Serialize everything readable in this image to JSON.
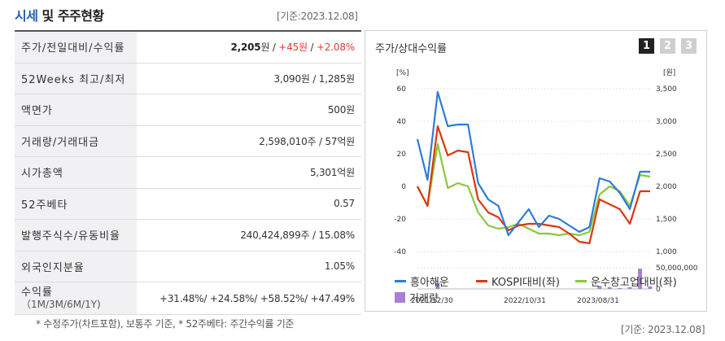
{
  "header": {
    "title_accent": "시세",
    "title_rest": " 및 주주현황",
    "date": "[기준:2023.12.08]"
  },
  "rows": [
    {
      "label": "주가/전일대비/수익률",
      "value_bold": "2,205",
      "value_unit": "원",
      "sep1": " / ",
      "change": "+45원",
      "sep2": " / ",
      "pct": "+2.08%"
    },
    {
      "label": "52Weeks 최고/최저",
      "value": "3,090원 / 1,285원"
    },
    {
      "label": "액면가",
      "value": "500원"
    },
    {
      "label": "거래량/거래대금",
      "value": "2,598,010주 / 57억원"
    },
    {
      "label": "시가총액",
      "value": "5,301억원"
    },
    {
      "label": "52주베타",
      "value": "0.57"
    },
    {
      "label": "발행주식수/유동비율",
      "value": "240,424,899주 / 15.08%"
    },
    {
      "label": "외국인지분율",
      "value": "1.05%"
    },
    {
      "label": "수익률",
      "label_sub": "（1M/3M/6M/1Y)",
      "value": "+31.48%/ +24.58%/ +58.52%/ +47.49%"
    }
  ],
  "footnote": "* 수정주가(차트포함), 보통주 기준, * 52주베타: 주간수익률 기준",
  "chart_panel": {
    "title": "주가/상대수익률",
    "tabs": [
      "1",
      "2",
      "3"
    ],
    "active_tab": "1",
    "date": "[기준: 2023.12.08]"
  },
  "chart_data": {
    "type": "line",
    "left_axis_unit": "[%]",
    "right_axis_unit": "[원]",
    "left_ticks": [
      "60",
      "40",
      "20",
      "0",
      "-20",
      "-40"
    ],
    "right_ticks": [
      "3,500",
      "3,000",
      "2,500",
      "2,000",
      "1,500",
      "1,000"
    ],
    "left_ylim": [
      -40,
      60
    ],
    "volume_ticks": [
      "50,000,000",
      "0"
    ],
    "volume_ylim": [
      0,
      50000000
    ],
    "x_ticks": [
      "2021/12/30",
      "2022/10/31",
      "2023/08/31"
    ],
    "colors": {
      "흥아해운": "#2e7bd9",
      "KOSPI대비(좌)": "#d9380f",
      "운수창고업대비(좌)": "#8cc63f",
      "거래량": "#a77fd6"
    },
    "series": [
      {
        "name": "흥아해운",
        "values": [
          29,
          4,
          58,
          37,
          38,
          38,
          2,
          -8,
          -12,
          -30,
          -22,
          -14,
          -25,
          -18,
          -20,
          -24,
          -28,
          -25,
          5,
          3,
          -4,
          -14,
          9,
          9
        ]
      },
      {
        "name": "KOSPI대비(좌)",
        "values": [
          0,
          -12,
          37,
          19,
          22,
          21,
          -8,
          -16,
          -19,
          -27,
          -24,
          -23,
          -23,
          -24,
          -25,
          -29,
          -34,
          -35,
          -8,
          -11,
          -14,
          -23,
          -3,
          -3
        ]
      },
      {
        "name": "운수창고업대비(좌)",
        "values": [
          0,
          -12,
          26,
          -1,
          2,
          0,
          -16,
          -24,
          -26,
          -25,
          -23,
          -26,
          -29,
          -29,
          -30,
          -29,
          -30,
          -28,
          -5,
          0,
          -3,
          -12,
          7,
          6
        ]
      }
    ],
    "volume": [
      0,
      0,
      14000000,
      0,
      0,
      0,
      0,
      0,
      0,
      0,
      0,
      0,
      0,
      0,
      0,
      0,
      0,
      0,
      7000000,
      4000000,
      2000000,
      4000000,
      48000000,
      6000000
    ],
    "legend": [
      "흥아해운",
      "KOSPI대비(좌)",
      "운수창고업대비(좌)",
      "거래량"
    ]
  }
}
